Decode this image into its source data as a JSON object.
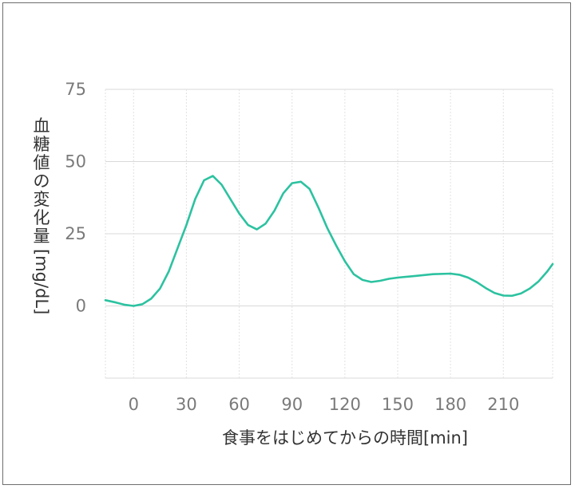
{
  "chart_data": {
    "type": "line",
    "title": "",
    "xlabel": "食事をはじめてからの時間[min]",
    "ylabel": "血糖値の変化量[mg/dL]",
    "xlim": [
      -16,
      238
    ],
    "ylim": [
      -25,
      75
    ],
    "x_ticks": [
      0,
      30,
      60,
      90,
      120,
      150,
      180,
      210
    ],
    "x_tick_labels": [
      "0",
      "30",
      "60",
      "90",
      "120",
      "150",
      "180",
      "210"
    ],
    "y_ticks": [
      0,
      25,
      50,
      75
    ],
    "y_tick_labels": [
      "0",
      "25",
      "50",
      "75"
    ],
    "grid": true,
    "colors": {
      "line": "#2cc2a0"
    },
    "series": [
      {
        "x": [
          -16,
          -10,
          -5,
          0,
          5,
          10,
          15,
          20,
          25,
          30,
          35,
          40,
          45,
          50,
          55,
          60,
          65,
          70,
          75,
          80,
          85,
          90,
          95,
          100,
          105,
          110,
          115,
          120,
          125,
          130,
          135,
          140,
          145,
          150,
          160,
          170,
          180,
          185,
          190,
          195,
          200,
          205,
          210,
          215,
          220,
          225,
          230,
          235,
          238
        ],
        "y": [
          2,
          1.2,
          0.4,
          0,
          0.6,
          2.5,
          6,
          12,
          20,
          28,
          37,
          43.5,
          45,
          42,
          37,
          32,
          28,
          26.5,
          28.5,
          33,
          39,
          42.5,
          43,
          40.5,
          34,
          27,
          21,
          15.5,
          11,
          9,
          8.3,
          8.7,
          9.4,
          9.8,
          10.4,
          11,
          11.2,
          10.8,
          9.8,
          8.2,
          6.2,
          4.5,
          3.6,
          3.5,
          4.3,
          6,
          8.5,
          12,
          14.5
        ]
      }
    ]
  }
}
